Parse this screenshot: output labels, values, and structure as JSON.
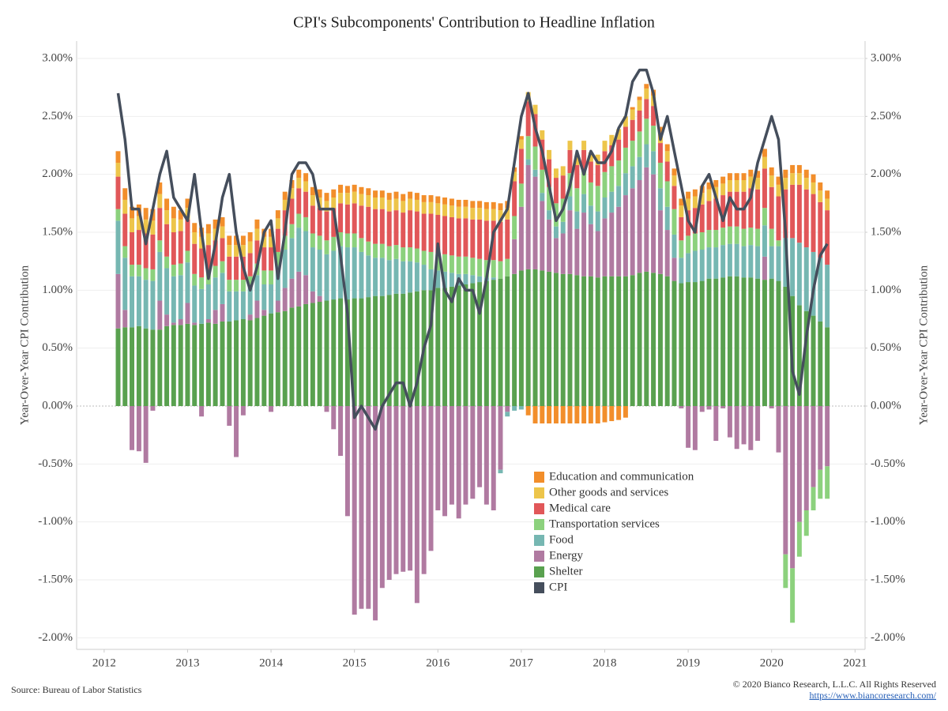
{
  "chart_data": {
    "type": "bar",
    "title": "CPI's Subcomponents' Contribution to Headline Inflation",
    "ylabel": "Year-Over-Year CPI Contribution",
    "y2label": "Year-Over-Year CPI Contribution",
    "source": "Source: Bureau of Labor Statistics",
    "copyright": "© 2020 Bianco Research, L.L.C. All Rights Reserved",
    "link": "https://www.biancoresearch.com/",
    "stacked": true,
    "grid": true,
    "xlim": [
      2011.67,
      2021.12
    ],
    "xticks": [
      2012,
      2013,
      2014,
      2015,
      2016,
      2017,
      2018,
      2019,
      2020,
      2021
    ],
    "ylim": [
      -2.1,
      3.15
    ],
    "yticks": [
      {
        "value": -2,
        "label": "-2.00%"
      },
      {
        "value": -1.5,
        "label": "-1.50%"
      },
      {
        "value": -1,
        "label": "-1.00%"
      },
      {
        "value": -0.5,
        "label": "-0.50%"
      },
      {
        "value": 0,
        "label": "0.00%"
      },
      {
        "value": 0.5,
        "label": "0.50%"
      },
      {
        "value": 1,
        "label": "1.00%"
      },
      {
        "value": 1.5,
        "label": "1.50%"
      },
      {
        "value": 2,
        "label": "2.00%"
      },
      {
        "value": 2.5,
        "label": "2.50%"
      },
      {
        "value": 3,
        "label": "3.00%"
      }
    ],
    "y2lim": [
      -2.1,
      3.15
    ],
    "y2ticks": [
      {
        "value": -2,
        "label": "-2.00%"
      },
      {
        "value": -1.5,
        "label": "-1.50%"
      },
      {
        "value": -1,
        "label": "-1.00%"
      },
      {
        "value": -0.5,
        "label": "-0.50%"
      },
      {
        "value": 0,
        "label": "0.00%"
      },
      {
        "value": 0.5,
        "label": "0.50%"
      },
      {
        "value": 1,
        "label": "1.00%"
      },
      {
        "value": 1.5,
        "label": "1.50%"
      },
      {
        "value": 2,
        "label": "2.00%"
      },
      {
        "value": 2.5,
        "label": "2.50%"
      },
      {
        "value": 3,
        "label": "3.00%"
      }
    ],
    "x": [
      2012.167,
      2012.25,
      2012.333,
      2012.417,
      2012.5,
      2012.583,
      2012.667,
      2012.75,
      2012.833,
      2012.917,
      2013.0,
      2013.083,
      2013.167,
      2013.25,
      2013.333,
      2013.417,
      2013.5,
      2013.583,
      2013.667,
      2013.75,
      2013.833,
      2013.917,
      2014.0,
      2014.083,
      2014.167,
      2014.25,
      2014.333,
      2014.417,
      2014.5,
      2014.583,
      2014.667,
      2014.75,
      2014.833,
      2014.917,
      2015.0,
      2015.083,
      2015.167,
      2015.25,
      2015.333,
      2015.417,
      2015.5,
      2015.583,
      2015.667,
      2015.75,
      2015.833,
      2015.917,
      2016.0,
      2016.083,
      2016.167,
      2016.25,
      2016.333,
      2016.417,
      2016.5,
      2016.583,
      2016.667,
      2016.75,
      2016.833,
      2016.917,
      2017.0,
      2017.083,
      2017.167,
      2017.25,
      2017.333,
      2017.417,
      2017.5,
      2017.583,
      2017.667,
      2017.75,
      2017.833,
      2017.917,
      2018.0,
      2018.083,
      2018.167,
      2018.25,
      2018.333,
      2018.417,
      2018.5,
      2018.583,
      2018.667,
      2018.75,
      2018.833,
      2018.917,
      2019.0,
      2019.083,
      2019.167,
      2019.25,
      2019.333,
      2019.417,
      2019.5,
      2019.583,
      2019.667,
      2019.75,
      2019.833,
      2019.917,
      2020.0,
      2020.083,
      2020.167,
      2020.25,
      2020.333,
      2020.417,
      2020.5,
      2020.583,
      2020.667
    ],
    "series": [
      {
        "name": "Education and communication",
        "color": "#f28e2b",
        "values": [
          0.1,
          0.1,
          0.1,
          0.1,
          0.1,
          0.1,
          0.1,
          0.1,
          0.1,
          0.08,
          0.08,
          0.08,
          0.08,
          0.08,
          0.08,
          0.08,
          0.08,
          0.08,
          0.08,
          0.08,
          0.08,
          0.07,
          0.07,
          0.07,
          0.07,
          0.07,
          0.07,
          0.07,
          0.07,
          0.07,
          0.07,
          0.07,
          0.07,
          0.06,
          0.06,
          0.06,
          0.06,
          0.06,
          0.06,
          0.06,
          0.06,
          0.06,
          0.06,
          0.06,
          0.06,
          0.06,
          0.06,
          0.06,
          0.06,
          0.06,
          0.06,
          0.06,
          0.06,
          0.06,
          0.06,
          0.06,
          0.06,
          0.04,
          0.03,
          -0.08,
          -0.15,
          -0.15,
          -0.15,
          -0.15,
          -0.15,
          -0.15,
          -0.15,
          -0.15,
          -0.15,
          -0.15,
          -0.14,
          -0.13,
          -0.12,
          -0.1,
          0.02,
          0.03,
          0.04,
          0.05,
          0.05,
          0.06,
          0.06,
          0.06,
          0.06,
          0.06,
          0.06,
          0.06,
          0.06,
          0.06,
          0.06,
          0.06,
          0.06,
          0.06,
          0.06,
          0.07,
          0.07,
          0.07,
          0.07,
          0.07,
          0.07,
          0.07,
          0.07,
          0.07,
          0.07
        ]
      },
      {
        "name": "Other goods and services",
        "color": "#edc54a",
        "values": [
          0.12,
          0.12,
          0.12,
          0.12,
          0.12,
          0.12,
          0.12,
          0.12,
          0.12,
          0.1,
          0.1,
          0.1,
          0.1,
          0.1,
          0.1,
          0.1,
          0.1,
          0.1,
          0.1,
          0.1,
          0.1,
          0.09,
          0.09,
          0.09,
          0.09,
          0.09,
          0.09,
          0.09,
          0.09,
          0.09,
          0.09,
          0.09,
          0.09,
          0.1,
          0.1,
          0.1,
          0.1,
          0.1,
          0.1,
          0.1,
          0.1,
          0.1,
          0.1,
          0.1,
          0.1,
          0.1,
          0.1,
          0.1,
          0.1,
          0.1,
          0.1,
          0.1,
          0.1,
          0.1,
          0.1,
          0.1,
          0.1,
          0.08,
          0.08,
          0.08,
          0.08,
          0.08,
          0.08,
          0.08,
          0.08,
          0.08,
          0.08,
          0.08,
          0.08,
          0.09,
          0.09,
          0.09,
          0.09,
          0.09,
          0.09,
          0.09,
          0.09,
          0.09,
          0.09,
          0.09,
          0.09,
          0.1,
          0.1,
          0.1,
          0.1,
          0.1,
          0.1,
          0.1,
          0.1,
          0.1,
          0.1,
          0.1,
          0.1,
          0.1,
          0.1,
          0.1,
          0.1,
          0.1,
          0.1,
          0.1,
          0.1,
          0.1,
          0.1
        ]
      },
      {
        "name": "Medical care",
        "color": "#e15759",
        "values": [
          0.28,
          0.28,
          0.28,
          0.3,
          0.3,
          0.3,
          0.28,
          0.28,
          0.28,
          0.28,
          0.27,
          0.26,
          0.25,
          0.24,
          0.22,
          0.2,
          0.2,
          0.2,
          0.2,
          0.2,
          0.2,
          0.2,
          0.2,
          0.2,
          0.22,
          0.22,
          0.22,
          0.22,
          0.24,
          0.24,
          0.25,
          0.25,
          0.25,
          0.25,
          0.26,
          0.28,
          0.3,
          0.3,
          0.3,
          0.3,
          0.3,
          0.3,
          0.32,
          0.32,
          0.32,
          0.33,
          0.33,
          0.33,
          0.33,
          0.33,
          0.33,
          0.33,
          0.34,
          0.34,
          0.34,
          0.34,
          0.34,
          0.3,
          0.3,
          0.3,
          0.28,
          0.26,
          0.24,
          0.22,
          0.2,
          0.2,
          0.2,
          0.18,
          0.18,
          0.18,
          0.18,
          0.18,
          0.18,
          0.18,
          0.18,
          0.18,
          0.17,
          0.17,
          0.17,
          0.17,
          0.2,
          0.2,
          0.22,
          0.22,
          0.24,
          0.25,
          0.27,
          0.28,
          0.3,
          0.3,
          0.32,
          0.34,
          0.34,
          0.34,
          0.36,
          0.38,
          0.42,
          0.46,
          0.5,
          0.5,
          0.5,
          0.48,
          0.47
        ]
      },
      {
        "name": "Transportation services",
        "color": "#8cd17d",
        "values": [
          0.1,
          0.1,
          0.1,
          0.1,
          0.1,
          0.1,
          0.1,
          0.1,
          0.1,
          0.1,
          0.1,
          0.1,
          0.1,
          0.1,
          0.1,
          0.1,
          0.1,
          0.1,
          0.1,
          0.1,
          0.1,
          0.12,
          0.12,
          0.12,
          0.12,
          0.12,
          0.12,
          0.12,
          0.12,
          0.12,
          0.12,
          0.12,
          0.12,
          0.12,
          0.12,
          0.12,
          0.12,
          0.12,
          0.12,
          0.12,
          0.12,
          0.12,
          0.12,
          0.12,
          0.12,
          0.15,
          0.15,
          0.15,
          0.15,
          0.15,
          0.15,
          0.15,
          0.15,
          0.15,
          0.15,
          0.15,
          0.15,
          0.2,
          0.2,
          0.2,
          0.2,
          0.2,
          0.2,
          0.2,
          0.2,
          0.2,
          0.2,
          0.2,
          0.2,
          0.22,
          0.22,
          0.22,
          0.22,
          0.22,
          0.22,
          0.22,
          0.22,
          0.22,
          0.22,
          0.22,
          0.22,
          0.15,
          0.15,
          0.15,
          0.15,
          0.15,
          0.15,
          0.15,
          0.15,
          0.15,
          0.15,
          0.15,
          0.15,
          0.15,
          0.15,
          0.05,
          -0.29,
          -0.47,
          -0.3,
          -0.22,
          -0.2,
          -0.25,
          -0.28
        ]
      },
      {
        "name": "Food",
        "color": "#76b7b2",
        "values": [
          0.46,
          0.45,
          0.44,
          0.43,
          0.42,
          0.42,
          0.42,
          0.4,
          0.4,
          0.38,
          0.35,
          0.32,
          0.3,
          0.3,
          0.28,
          0.27,
          0.26,
          0.25,
          0.24,
          0.23,
          0.22,
          0.22,
          0.25,
          0.3,
          0.33,
          0.35,
          0.38,
          0.38,
          0.38,
          0.4,
          0.4,
          0.42,
          0.45,
          0.45,
          0.44,
          0.4,
          0.36,
          0.33,
          0.33,
          0.3,
          0.3,
          0.28,
          0.27,
          0.25,
          0.22,
          0.18,
          0.15,
          0.14,
          0.12,
          0.1,
          0.09,
          0.07,
          0.05,
          0.03,
          0.02,
          -0.03,
          -0.04,
          -0.04,
          -0.03,
          0.05,
          0.06,
          0.07,
          0.08,
          0.1,
          0.1,
          0.12,
          0.15,
          0.16,
          0.16,
          0.17,
          0.18,
          0.18,
          0.18,
          0.19,
          0.19,
          0.2,
          0.2,
          0.2,
          0.19,
          0.2,
          0.2,
          0.22,
          0.25,
          0.27,
          0.27,
          0.27,
          0.27,
          0.28,
          0.28,
          0.28,
          0.27,
          0.28,
          0.28,
          0.27,
          0.28,
          0.3,
          0.42,
          0.5,
          0.54,
          0.55,
          0.55,
          0.55,
          0.54
        ]
      },
      {
        "name": "Energy",
        "color": "#b07aa1",
        "values": [
          0.47,
          0.15,
          -0.38,
          -0.39,
          -0.49,
          -0.04,
          0.25,
          0.1,
          0.02,
          0.05,
          0.18,
          0.02,
          -0.09,
          0.03,
          0.12,
          0.15,
          -0.17,
          -0.44,
          -0.08,
          0.05,
          0.15,
          0.05,
          -0.05,
          0.1,
          0.2,
          0.25,
          0.3,
          0.25,
          0.1,
          0.05,
          -0.05,
          -0.2,
          -0.43,
          -0.95,
          -1.8,
          -1.75,
          -1.75,
          -1.85,
          -1.57,
          -1.5,
          -1.45,
          -1.43,
          -1.42,
          -1.7,
          -1.45,
          -1.25,
          -0.9,
          -0.95,
          -0.85,
          -0.97,
          -0.85,
          -0.8,
          -0.7,
          -0.85,
          -0.9,
          -0.55,
          -0.05,
          0.3,
          0.55,
          0.9,
          0.8,
          0.6,
          0.45,
          0.3,
          0.35,
          0.55,
          0.4,
          0.55,
          0.45,
          0.4,
          0.5,
          0.55,
          0.6,
          0.7,
          0.75,
          0.8,
          0.9,
          0.85,
          0.55,
          0.4,
          0.2,
          -0.02,
          -0.36,
          -0.38,
          -0.05,
          -0.03,
          -0.3,
          -0.02,
          -0.27,
          -0.37,
          -0.33,
          -0.38,
          -0.3,
          0.2,
          -0.02,
          -0.4,
          -1.28,
          -1.4,
          -1.0,
          -0.9,
          -0.7,
          -0.55,
          -0.52
        ]
      },
      {
        "name": "Shelter",
        "color": "#59a14f",
        "values": [
          0.67,
          0.68,
          0.68,
          0.69,
          0.67,
          0.66,
          0.66,
          0.69,
          0.7,
          0.7,
          0.71,
          0.7,
          0.71,
          0.72,
          0.71,
          0.73,
          0.73,
          0.74,
          0.75,
          0.74,
          0.76,
          0.78,
          0.8,
          0.81,
          0.82,
          0.85,
          0.86,
          0.88,
          0.89,
          0.9,
          0.91,
          0.92,
          0.93,
          0.92,
          0.93,
          0.93,
          0.94,
          0.95,
          0.95,
          0.96,
          0.97,
          0.97,
          0.98,
          0.99,
          1.0,
          1.0,
          1.02,
          1.02,
          1.03,
          1.04,
          1.05,
          1.06,
          1.07,
          1.08,
          1.09,
          1.1,
          1.12,
          1.14,
          1.17,
          1.18,
          1.18,
          1.17,
          1.16,
          1.15,
          1.14,
          1.14,
          1.13,
          1.12,
          1.12,
          1.11,
          1.12,
          1.12,
          1.12,
          1.12,
          1.13,
          1.15,
          1.16,
          1.15,
          1.14,
          1.12,
          1.08,
          1.06,
          1.07,
          1.07,
          1.08,
          1.1,
          1.1,
          1.11,
          1.12,
          1.12,
          1.11,
          1.11,
          1.1,
          1.09,
          1.1,
          1.08,
          1.03,
          0.95,
          0.87,
          0.82,
          0.78,
          0.73,
          0.68
        ]
      },
      {
        "name": "CPI",
        "color": "#454e5c",
        "type": "line",
        "values": [
          2.7,
          2.3,
          1.7,
          1.7,
          1.4,
          1.7,
          2.0,
          2.2,
          1.8,
          1.7,
          1.6,
          2.0,
          1.5,
          1.1,
          1.4,
          1.8,
          2.0,
          1.5,
          1.2,
          1.0,
          1.2,
          1.5,
          1.6,
          1.1,
          1.5,
          2.0,
          2.1,
          2.1,
          2.0,
          1.7,
          1.7,
          1.7,
          1.3,
          0.8,
          -0.1,
          0.0,
          -0.1,
          -0.2,
          0.0,
          0.1,
          0.2,
          0.2,
          0.0,
          0.2,
          0.5,
          0.7,
          1.4,
          1.0,
          0.9,
          1.1,
          1.0,
          1.0,
          0.8,
          1.1,
          1.5,
          1.6,
          1.7,
          2.1,
          2.5,
          2.7,
          2.4,
          2.2,
          1.9,
          1.6,
          1.7,
          1.9,
          2.2,
          2.0,
          2.2,
          2.1,
          2.1,
          2.2,
          2.4,
          2.5,
          2.8,
          2.9,
          2.9,
          2.7,
          2.3,
          2.5,
          2.2,
          1.9,
          1.6,
          1.5,
          1.9,
          2.0,
          1.8,
          1.6,
          1.8,
          1.7,
          1.7,
          1.8,
          2.1,
          2.3,
          2.5,
          2.3,
          1.5,
          0.3,
          0.1,
          0.6,
          1.0,
          1.3,
          1.4
        ]
      }
    ]
  }
}
